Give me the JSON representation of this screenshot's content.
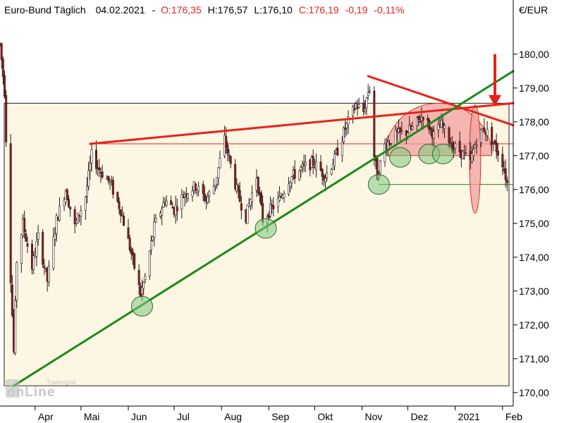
{
  "header": {
    "instrument": "Euro-Bund Täglich",
    "date": "04.02.2021",
    "open": "O:176,35",
    "high": "H:176,57",
    "low": "L:176,10",
    "close": "C:176,19",
    "change": "-0,19",
    "change_pct": "-0,11%",
    "currency": "€/EUR"
  },
  "watermark": {
    "line1": "Tradesignal",
    "line2": "onLine"
  },
  "colors": {
    "background_zone": "#fdf6e3",
    "resistance_red": "#e8221b",
    "support_green": "#1b8a1b",
    "candle_up": "#ffffff",
    "candle_down": "#8b1c1c",
    "change_red": "#e8221b",
    "dome_fill": "#f2a0a0"
  },
  "chart_data": {
    "type": "candlestick",
    "y_axis": {
      "ticks": [
        "170,00",
        "171,00",
        "172,00",
        "173,00",
        "174,00",
        "175,00",
        "176,00",
        "177,00",
        "178,00",
        "179,00",
        "180,00"
      ],
      "values": [
        170,
        171,
        172,
        173,
        174,
        175,
        176,
        177,
        178,
        179,
        180
      ],
      "ylim": [
        169.6,
        181.6
      ]
    },
    "x_axis": {
      "ticks": [
        "Apr",
        "Mai",
        "Jun",
        "Jul",
        "Aug",
        "Sep",
        "Okt",
        "Nov",
        "Dez",
        "2021",
        "Feb"
      ],
      "dates": [
        "2020-04-01",
        "2020-05-01",
        "2020-06-01",
        "2020-07-01",
        "2020-08-01",
        "2020-09-01",
        "2020-10-01",
        "2020-11-01",
        "2020-12-01",
        "2021-01-01",
        "2021-02-01"
      ],
      "range": [
        "2020-03-09",
        "2021-02-08"
      ]
    },
    "price_path": [
      [
        "2020-03-09",
        180.3
      ],
      [
        "2020-03-12",
        178.9
      ],
      [
        "2020-03-16",
        173.4
      ],
      [
        "2020-03-18",
        171.2
      ],
      [
        "2020-03-20",
        173.9
      ],
      [
        "2020-03-24",
        175.0
      ],
      [
        "2020-03-30",
        173.7
      ],
      [
        "2020-04-03",
        174.6
      ],
      [
        "2020-04-09",
        173.3
      ],
      [
        "2020-04-15",
        175.1
      ],
      [
        "2020-04-21",
        176.0
      ],
      [
        "2020-04-27",
        174.9
      ],
      [
        "2020-05-04",
        175.8
      ],
      [
        "2020-05-08",
        177.0
      ],
      [
        "2020-05-13",
        176.6
      ],
      [
        "2020-05-20",
        176.2
      ],
      [
        "2020-05-27",
        175.4
      ],
      [
        "2020-06-03",
        174.1
      ],
      [
        "2020-06-09",
        172.9
      ],
      [
        "2020-06-12",
        173.4
      ],
      [
        "2020-06-18",
        174.9
      ],
      [
        "2020-06-25",
        175.7
      ],
      [
        "2020-07-01",
        175.4
      ],
      [
        "2020-07-08",
        175.9
      ],
      [
        "2020-07-15",
        176.1
      ],
      [
        "2020-07-22",
        175.7
      ],
      [
        "2020-07-28",
        176.2
      ],
      [
        "2020-08-03",
        177.5
      ],
      [
        "2020-08-06",
        176.9
      ],
      [
        "2020-08-12",
        175.8
      ],
      [
        "2020-08-17",
        175.2
      ],
      [
        "2020-08-24",
        176.4
      ],
      [
        "2020-08-28",
        175.1
      ],
      [
        "2020-09-02",
        175.4
      ],
      [
        "2020-09-08",
        175.7
      ],
      [
        "2020-09-14",
        176.3
      ],
      [
        "2020-09-22",
        176.6
      ],
      [
        "2020-09-30",
        176.8
      ],
      [
        "2020-10-08",
        176.4
      ],
      [
        "2020-10-14",
        176.9
      ],
      [
        "2020-10-21",
        177.8
      ],
      [
        "2020-10-28",
        178.5
      ],
      [
        "2020-11-02",
        178.3
      ],
      [
        "2020-11-05",
        178.9
      ],
      [
        "2020-11-06",
        179.0
      ],
      [
        "2020-11-09",
        177.0
      ],
      [
        "2020-11-11",
        176.4
      ],
      [
        "2020-11-16",
        177.3
      ],
      [
        "2020-11-23",
        177.6
      ],
      [
        "2020-11-30",
        177.7
      ],
      [
        "2020-12-04",
        177.8
      ],
      [
        "2020-12-11",
        178.2
      ],
      [
        "2020-12-18",
        177.6
      ],
      [
        "2020-12-23",
        177.9
      ],
      [
        "2020-12-30",
        177.3
      ],
      [
        "2021-01-05",
        177.1
      ],
      [
        "2021-01-11",
        176.8
      ],
      [
        "2021-01-15",
        177.5
      ],
      [
        "2021-01-20",
        177.8
      ],
      [
        "2021-01-26",
        177.4
      ],
      [
        "2021-02-01",
        176.8
      ],
      [
        "2021-02-04",
        176.19
      ]
    ],
    "trendlines": [
      {
        "color": "red",
        "from": [
          "2020-05-07",
          177.35
        ],
        "to": [
          "2021-02-08",
          178.55
        ]
      },
      {
        "color": "red",
        "from": [
          "2020-11-05",
          179.35
        ],
        "to": [
          "2021-02-08",
          177.9
        ]
      },
      {
        "color": "green",
        "from": [
          "2020-03-18",
          170.2
        ],
        "to": [
          "2021-02-08",
          179.5
        ]
      }
    ],
    "horizontal_levels": [
      {
        "value": 178.55,
        "color": "dark"
      },
      {
        "value": 177.35,
        "color": "red"
      },
      {
        "value": 176.15,
        "color": "green"
      }
    ],
    "markers": [
      {
        "date": "2020-06-10",
        "value": 172.55
      },
      {
        "date": "2020-08-30",
        "value": 174.85
      },
      {
        "date": "2020-11-12",
        "value": 176.15
      },
      {
        "date": "2020-11-26",
        "value": 176.95
      },
      {
        "date": "2020-12-15",
        "value": 177.05
      },
      {
        "date": "2020-12-24",
        "value": 177.05
      }
    ],
    "signal_arrow": {
      "date": "2021-01-27",
      "from": 180.0,
      "to": 178.5
    }
  }
}
